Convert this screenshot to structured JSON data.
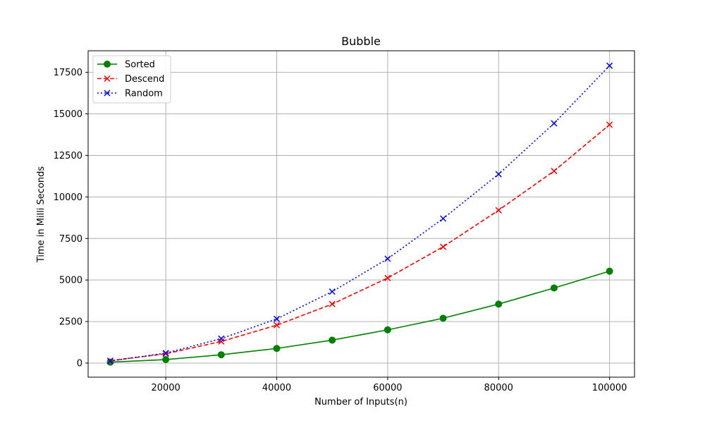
{
  "chart_data": {
    "type": "line",
    "title": "Bubble",
    "xlabel": "Number of Inputs(n)",
    "ylabel": "Time in Milli Seconds",
    "x": [
      10000,
      20000,
      30000,
      40000,
      50000,
      60000,
      70000,
      80000,
      90000,
      100000
    ],
    "xlim": [
      6000,
      104500
    ],
    "ylim": [
      -850,
      18800
    ],
    "xticks": [
      20000,
      40000,
      60000,
      80000,
      100000
    ],
    "yticks": [
      0,
      2500,
      5000,
      7500,
      10000,
      12500,
      15000,
      17500
    ],
    "grid": true,
    "legend_position": "top-left",
    "series": [
      {
        "name": "Sorted",
        "color": "#008000",
        "linestyle": "solid",
        "marker": "circle",
        "values": [
          55,
          210,
          500,
          880,
          1380,
          2000,
          2700,
          3550,
          4520,
          5530
        ]
      },
      {
        "name": "Descend",
        "color": "#ff0000",
        "linestyle": "dashed",
        "marker": "x",
        "values": [
          145,
          560,
          1300,
          2280,
          3550,
          5120,
          7000,
          9200,
          11560,
          14350
        ]
      },
      {
        "name": "Random",
        "color": "#0000ff",
        "linestyle": "dotted",
        "marker": "x",
        "values": [
          120,
          600,
          1470,
          2660,
          4300,
          6280,
          8700,
          11370,
          14430,
          17900
        ]
      }
    ]
  }
}
